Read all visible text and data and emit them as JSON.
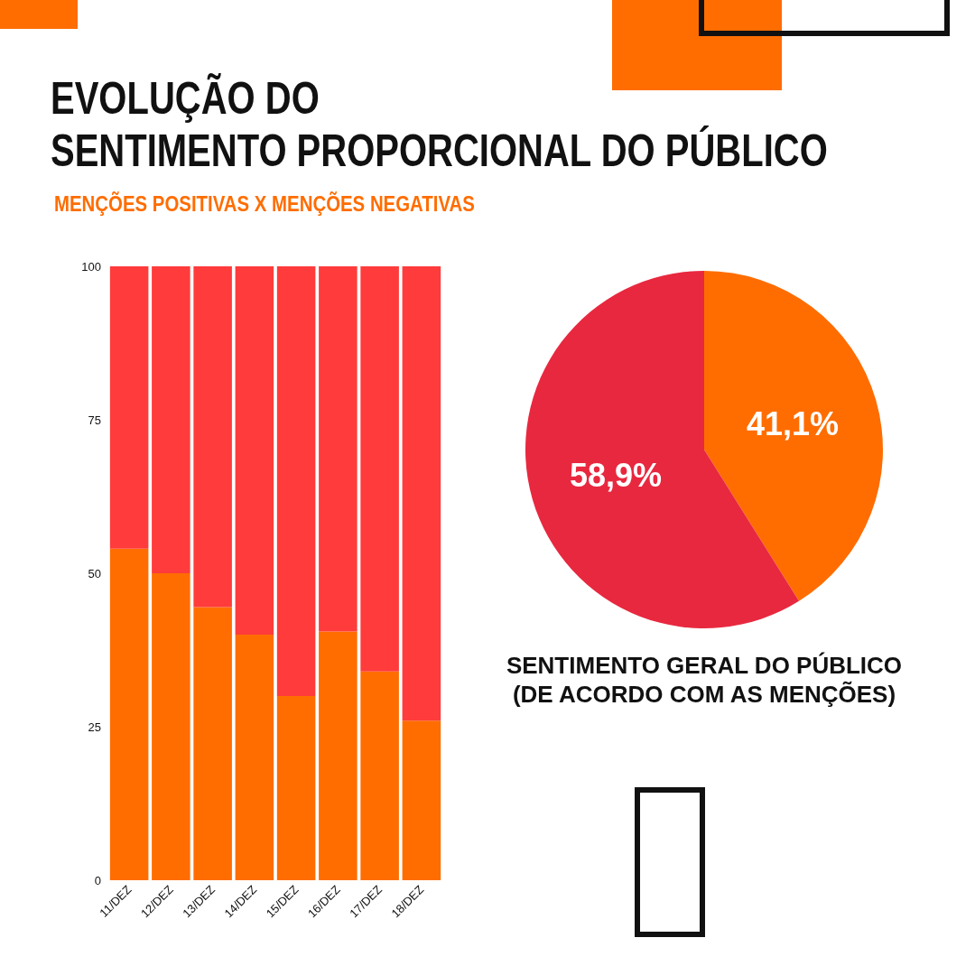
{
  "chart_data": [
    {
      "type": "bar",
      "title": "EVOLUÇÃO DO\nSENTIMENTO PROPORCIONAL DO PÚBLICO",
      "subtitle": "MENÇÕES POSITIVAS X MENÇÕES NEGATIVAS",
      "categories": [
        "11/DEZ",
        "12/DEZ",
        "13/DEZ",
        "14/DEZ",
        "15/DEZ",
        "16/DEZ",
        "17/DEZ",
        "18/DEZ"
      ],
      "stacked": true,
      "grid": false,
      "ylim": [
        0,
        100
      ],
      "yticks": [
        0,
        25,
        50,
        75,
        100
      ],
      "series": [
        {
          "color": "#ff6d00",
          "values": [
            54,
            50,
            44.5,
            40,
            30,
            40.5,
            34,
            26
          ]
        },
        {
          "color": "#ff3b3b",
          "values": [
            46,
            50,
            55.5,
            60,
            70,
            59.5,
            66,
            74
          ]
        }
      ]
    },
    {
      "type": "pie",
      "title": "SENTIMENTO GERAL DO PÚBLICO\n(DE ACORDO COM AS MENÇÕES)",
      "categories": [
        null,
        null
      ],
      "values": [
        41.1,
        58.9
      ],
      "colors": [
        "#ff6d00",
        "#e8283f"
      ],
      "value_labels": [
        "41,1%",
        "58,9%"
      ]
    }
  ]
}
